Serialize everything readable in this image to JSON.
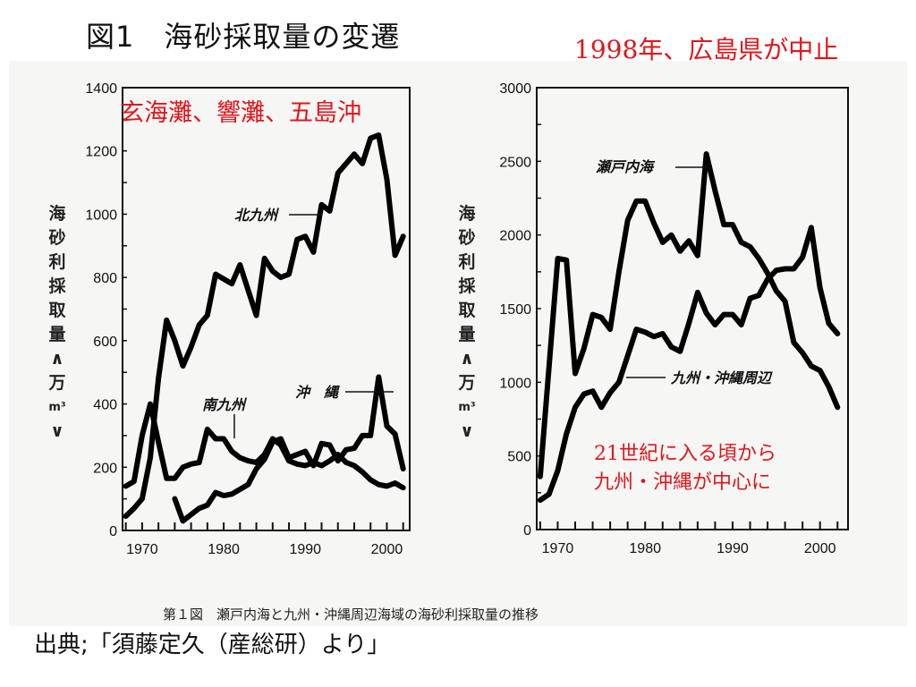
{
  "title": "図1　海砂採取量の変遷",
  "annotations": {
    "hiroshima": "1998年、広島県が中止",
    "left_region": "玄海灘、響灘、五島沖",
    "right_note_line1": "21世紀に入る頃から",
    "right_note_line2": "九州・沖縄が中心に"
  },
  "caption": "第１図　瀬戸内海と九州・沖縄周辺海域の海砂利採取量の推移",
  "source": "出典;「須藤定久（産総研）より」",
  "colors": {
    "accent_red": "#e0161b",
    "line": "#000000",
    "axis": "#111111"
  },
  "chart_data": [
    {
      "type": "line",
      "title": "",
      "xlabel": "",
      "ylabel": "海砂利採取量（万m³）",
      "ylabel_chars": [
        "海",
        "砂",
        "利",
        "採",
        "取",
        "量",
        "∧",
        "万",
        "m³",
        "∨"
      ],
      "xlim": [
        1967.6,
        2002.8
      ],
      "ylim": [
        0,
        1400
      ],
      "xticks": [
        1970,
        1980,
        1990,
        2000
      ],
      "yticks": [
        0,
        200,
        400,
        600,
        800,
        1000,
        1200,
        1400
      ],
      "grid": false,
      "series": [
        {
          "name": "北九州",
          "x": [
            1968,
            1969,
            1970,
            1971,
            1972,
            1973,
            1974,
            1975,
            1976,
            1977,
            1978,
            1979,
            1980,
            1981,
            1982,
            1983,
            1984,
            1985,
            1986,
            1987,
            1988,
            1989,
            1990,
            1991,
            1992,
            1993,
            1994,
            1995,
            1996,
            1997,
            1998,
            1999,
            2000,
            2001,
            2002
          ],
          "values": [
            45,
            70,
            100,
            230,
            480,
            665,
            600,
            520,
            580,
            650,
            680,
            810,
            795,
            780,
            840,
            760,
            680,
            860,
            820,
            800,
            810,
            920,
            930,
            880,
            1030,
            1010,
            1130,
            1160,
            1190,
            1160,
            1240,
            1250,
            1110,
            870,
            930
          ]
        },
        {
          "name": "南九州",
          "x": [
            1968,
            1969,
            1970,
            1971,
            1972,
            1973,
            1974,
            1975,
            1976,
            1977,
            1978,
            1979,
            1980,
            1981,
            1982,
            1983,
            1984,
            1985,
            1986,
            1987,
            1988,
            1989,
            1990,
            1991,
            1992,
            1993,
            1994,
            1995,
            1996,
            1997,
            1998,
            1999,
            2000,
            2001,
            2002
          ],
          "values": [
            140,
            155,
            300,
            400,
            280,
            165,
            165,
            200,
            210,
            215,
            320,
            290,
            290,
            250,
            230,
            220,
            215,
            240,
            290,
            270,
            220,
            210,
            205,
            215,
            205,
            220,
            240,
            215,
            205,
            185,
            160,
            145,
            140,
            150,
            135
          ]
        },
        {
          "name": "沖　縄",
          "x": [
            1974,
            1975,
            1976,
            1977,
            1978,
            1979,
            1980,
            1981,
            1982,
            1983,
            1984,
            1985,
            1986,
            1987,
            1988,
            1989,
            1990,
            1991,
            1992,
            1993,
            1994,
            1995,
            1996,
            1997,
            1998,
            1999,
            2000,
            2001,
            2002
          ],
          "values": [
            100,
            30,
            50,
            70,
            80,
            120,
            110,
            115,
            130,
            145,
            195,
            225,
            280,
            290,
            230,
            240,
            250,
            205,
            275,
            270,
            220,
            255,
            260,
            300,
            300,
            485,
            330,
            305,
            195
          ]
        }
      ]
    },
    {
      "type": "line",
      "title": "",
      "xlabel": "",
      "ylabel": "海砂利採取量（万m³）",
      "ylabel_chars": [
        "海",
        "砂",
        "利",
        "採",
        "取",
        "量",
        "∧",
        "万",
        "m³",
        "∨"
      ],
      "xlim": [
        1967.6,
        2003.2
      ],
      "ylim": [
        0,
        3000
      ],
      "xticks": [
        1970,
        1980,
        1990,
        2000
      ],
      "yticks": [
        0,
        500,
        1000,
        1500,
        2000,
        2500,
        3000
      ],
      "grid": false,
      "series": [
        {
          "name": "瀬戸内海",
          "x": [
            1968,
            1969,
            1970,
            1971,
            1972,
            1973,
            1974,
            1975,
            1976,
            1977,
            1978,
            1979,
            1980,
            1981,
            1982,
            1983,
            1984,
            1985,
            1986,
            1987,
            1988,
            1989,
            1990,
            1991,
            1992,
            1993,
            1994,
            1995,
            1996,
            1997,
            1998,
            1999,
            2000,
            2001,
            2002
          ],
          "values": [
            360,
            1100,
            1840,
            1830,
            1060,
            1230,
            1460,
            1440,
            1360,
            1750,
            2100,
            2230,
            2230,
            2080,
            1950,
            2000,
            1890,
            1960,
            1860,
            2550,
            2300,
            2070,
            2070,
            1950,
            1920,
            1840,
            1740,
            1620,
            1550,
            1270,
            1200,
            1110,
            1080,
            970,
            830
          ]
        },
        {
          "name": "九州・沖縄周辺",
          "x": [
            1968,
            1969,
            1970,
            1971,
            1972,
            1973,
            1974,
            1975,
            1976,
            1977,
            1978,
            1979,
            1980,
            1981,
            1982,
            1983,
            1984,
            1985,
            1986,
            1987,
            1988,
            1989,
            1990,
            1991,
            1992,
            1993,
            1994,
            1995,
            1996,
            1997,
            1998,
            1999,
            2000,
            2001,
            2002
          ],
          "values": [
            200,
            240,
            400,
            650,
            830,
            920,
            940,
            830,
            930,
            1000,
            1180,
            1360,
            1340,
            1310,
            1330,
            1240,
            1210,
            1400,
            1610,
            1470,
            1390,
            1460,
            1460,
            1390,
            1570,
            1590,
            1700,
            1760,
            1770,
            1770,
            1850,
            2050,
            1640,
            1400,
            1330
          ]
        }
      ]
    }
  ]
}
